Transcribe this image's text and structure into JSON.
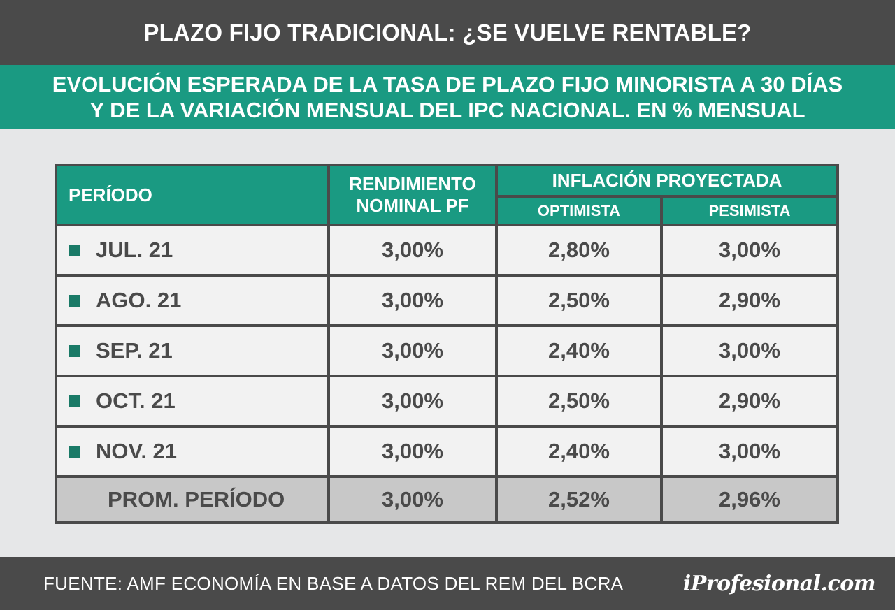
{
  "header": {
    "title": "PLAZO FIJO TRADICIONAL: ¿SE VUELVE RENTABLE?",
    "subtitle_line1": "EVOLUCIÓN ESPERADA DE LA TASA DE PLAZO FIJO MINORISTA A 30 DÍAS",
    "subtitle_line2": "Y DE LA VARIACIÓN MENSUAL DEL IPC NACIONAL. EN % MENSUAL"
  },
  "table": {
    "col_period": "PERÍODO",
    "col_rend_line1": "RENDIMIENTO",
    "col_rend_line2": "NOMINAL PF",
    "col_group": "INFLACIÓN PROYECTADA",
    "col_opt": "OPTIMISTA",
    "col_pes": "PESIMISTA",
    "rows": [
      {
        "period": "JUL. 21",
        "rend": "3,00%",
        "opt": "2,80%",
        "pes": "3,00%"
      },
      {
        "period": "AGO. 21",
        "rend": "3,00%",
        "opt": "2,50%",
        "pes": "2,90%"
      },
      {
        "period": "SEP. 21",
        "rend": "3,00%",
        "opt": "2,40%",
        "pes": "3,00%"
      },
      {
        "period": "OCT. 21",
        "rend": "3,00%",
        "opt": "2,50%",
        "pes": "2,90%"
      },
      {
        "period": "NOV. 21",
        "rend": "3,00%",
        "opt": "2,40%",
        "pes": "3,00%"
      }
    ],
    "average": {
      "period": "PROM. PERÍODO",
      "rend": "3,00%",
      "opt": "2,52%",
      "pes": "2,96%"
    }
  },
  "footer": {
    "source": "FUENTE: AMF ECONOMÍA EN BASE A DATOS DEL REM DEL BCRA",
    "logo": "iProfesional.com"
  },
  "colors": {
    "dark": "#4a4a4a",
    "green": "#1a9a82",
    "bullet": "#1a7a67",
    "background": "#e6e7e8",
    "avg_row": "#c8c8c8"
  },
  "chart_data": {
    "type": "table",
    "title": "PLAZO FIJO TRADICIONAL: ¿SE VUELVE RENTABLE?",
    "subtitle": "EVOLUCIÓN ESPERADA DE LA TASA DE PLAZO FIJO MINORISTA A 30 DÍAS Y DE LA VARIACIÓN MENSUAL DEL IPC NACIONAL. EN % MENSUAL",
    "categories": [
      "JUL. 21",
      "AGO. 21",
      "SEP. 21",
      "OCT. 21",
      "NOV. 21"
    ],
    "series": [
      {
        "name": "RENDIMIENTO NOMINAL PF",
        "values": [
          3.0,
          3.0,
          3.0,
          3.0,
          3.0
        ],
        "average": 3.0
      },
      {
        "name": "OPTIMISTA",
        "values": [
          2.8,
          2.5,
          2.4,
          2.5,
          2.4
        ],
        "average": 2.52
      },
      {
        "name": "PESIMISTA",
        "values": [
          3.0,
          2.9,
          3.0,
          2.9,
          3.0
        ],
        "average": 2.96
      }
    ]
  }
}
